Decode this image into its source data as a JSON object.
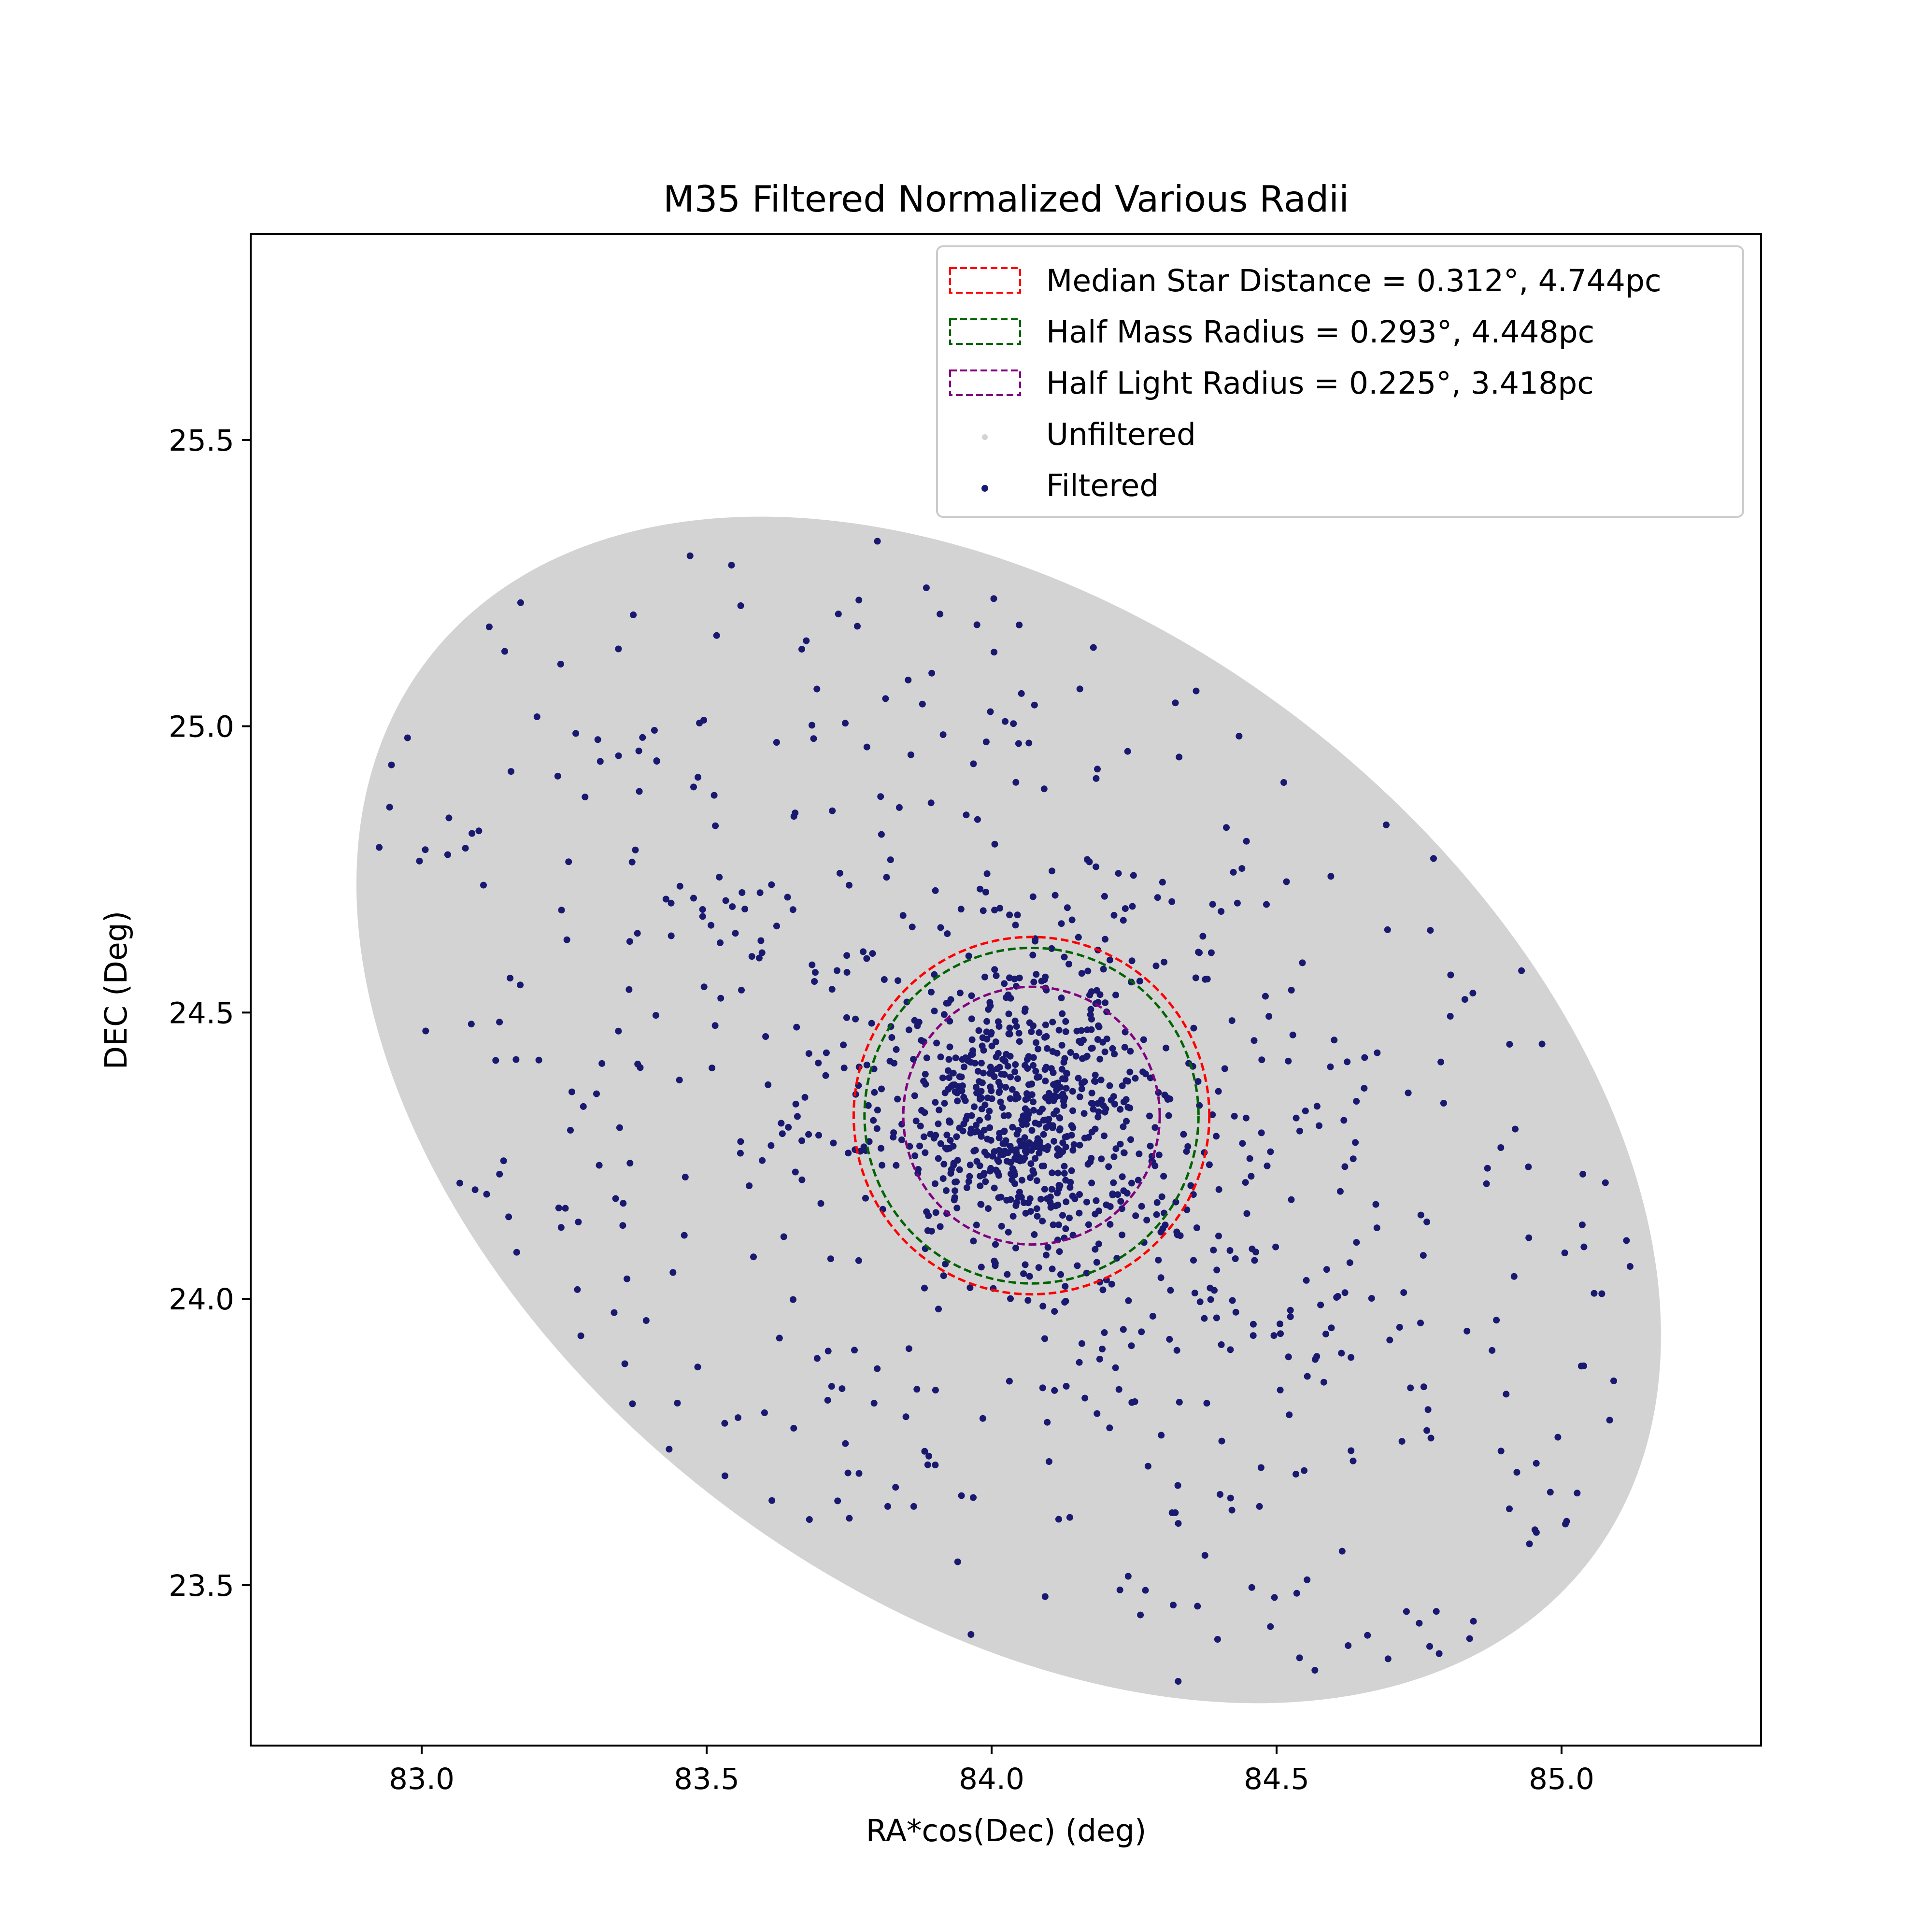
{
  "chart_data": {
    "type": "scatter",
    "title": "M35 Filtered Normalized Various Radii",
    "xlabel": "RA*cos(Dec) (deg)",
    "ylabel": "DEC (Deg)",
    "xlim": [
      82.7,
      85.35
    ],
    "ylim": [
      23.22,
      25.86
    ],
    "x_ticks": [
      "83.0",
      "83.5",
      "84.0",
      "84.5",
      "85.0"
    ],
    "y_ticks": [
      "23.5",
      "24.0",
      "24.5",
      "25.0",
      "25.5"
    ],
    "grid": false,
    "legend_position": "top-right",
    "legend": [
      "Median Star Distance = 0.312°, 4.744pc",
      "Half Mass Radius = 0.293°, 4.448pc",
      "Half Light Radius = 0.225°, 3.418pc",
      "Unfiltered",
      "Filtered"
    ],
    "unfiltered_region": {
      "shape": "ellipse",
      "center": [
        84.03,
        24.33
      ],
      "semi_major_deg": 1.29,
      "semi_minor_deg": 0.85,
      "rotation_deg": -38,
      "color": "#d3d3d3"
    },
    "filtered_points": {
      "color": "#191970",
      "count_approx": 1300,
      "core_center": [
        84.07,
        24.32
      ],
      "core_spread_deg": 0.12,
      "halo_along_major_axis": true
    },
    "circles": [
      {
        "series": "Median Star Distance",
        "center": [
          84.07,
          24.32
        ],
        "radius_deg": 0.312,
        "radius_pc": 4.744,
        "color": "#ff0000",
        "style": "dashed"
      },
      {
        "series": "Half Mass Radius",
        "center": [
          84.07,
          24.32
        ],
        "radius_deg": 0.293,
        "radius_pc": 4.448,
        "color": "#006400",
        "style": "dashed"
      },
      {
        "series": "Half Light Radius",
        "center": [
          84.07,
          24.32
        ],
        "radius_deg": 0.225,
        "radius_pc": 3.418,
        "color": "#800080",
        "style": "dashed"
      }
    ]
  }
}
